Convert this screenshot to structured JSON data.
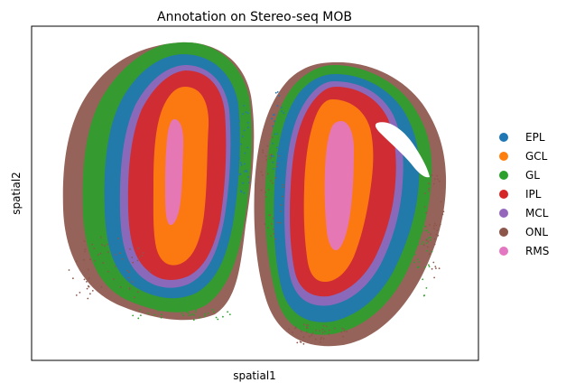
{
  "chart_data": {
    "type": "scatter",
    "title": "Annotation on Stereo-seq MOB",
    "xlabel": "spatial1",
    "ylabel": "spatial2",
    "xticks": [],
    "yticks": [],
    "grid": false,
    "legend_placement": "right",
    "categories": [
      "EPL",
      "GCL",
      "GL",
      "IPL",
      "MCL",
      "ONL",
      "RMS"
    ],
    "series": [
      {
        "name": "EPL",
        "color": "#1f77b4"
      },
      {
        "name": "GCL",
        "color": "#ff7f0e"
      },
      {
        "name": "GL",
        "color": "#2ca02c"
      },
      {
        "name": "IPL",
        "color": "#d62728"
      },
      {
        "name": "MCL",
        "color": "#9467bd"
      },
      {
        "name": "ONL",
        "color": "#8c564b"
      },
      {
        "name": "RMS",
        "color": "#e377c2"
      }
    ]
  }
}
